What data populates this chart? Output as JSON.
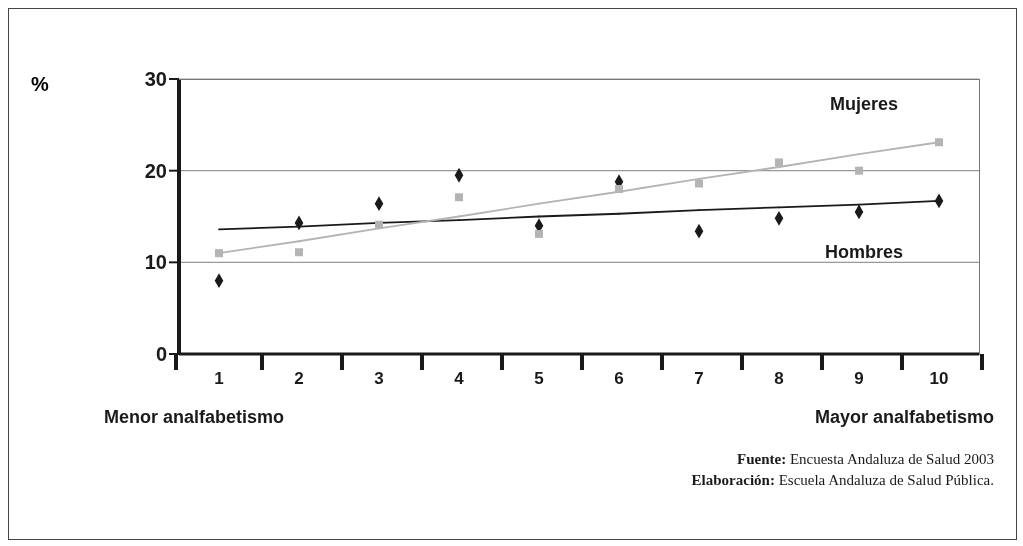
{
  "chart_data": {
    "type": "scatter",
    "ylabel": "%",
    "x": [
      1,
      2,
      3,
      4,
      5,
      6,
      7,
      8,
      9,
      10
    ],
    "xlim": [
      0.5,
      10.5
    ],
    "xticks": [
      1,
      2,
      3,
      4,
      5,
      6,
      7,
      8,
      9,
      10
    ],
    "ylim": [
      0,
      30
    ],
    "yticks": [
      0,
      10,
      20,
      30
    ],
    "grid": "y",
    "legend": false,
    "series": [
      {
        "name": "Hombres",
        "color": "#1a1a1a",
        "marker": "diamond",
        "values": [
          8.0,
          14.3,
          16.4,
          19.5,
          14.0,
          18.8,
          13.4,
          14.8,
          15.5,
          16.7
        ]
      },
      {
        "name": "Mujeres",
        "color": "#b4b4b4",
        "marker": "square",
        "values": [
          11.0,
          11.1,
          14.1,
          17.1,
          13.1,
          18.0,
          18.6,
          20.9,
          20.0,
          23.1
        ]
      },
      {
        "type": "line",
        "color": "#1a1a1a",
        "values": [
          13.6,
          13.9,
          14.3,
          14.6,
          15.0,
          15.3,
          15.7,
          16.0,
          16.3,
          16.7
        ]
      },
      {
        "type": "line",
        "color": "#b4b4b4",
        "values": [
          11.0,
          12.3,
          13.7,
          15.0,
          16.4,
          17.7,
          19.1,
          20.4,
          21.8,
          23.1
        ]
      }
    ],
    "annotations": [
      "Menor analfabetismo",
      "Mayor analfabetismo",
      "Fuente: Encuesta Andaluza de Salud 2003",
      "Elaboración: Escuela Andaluza de Salud Pública."
    ]
  }
}
